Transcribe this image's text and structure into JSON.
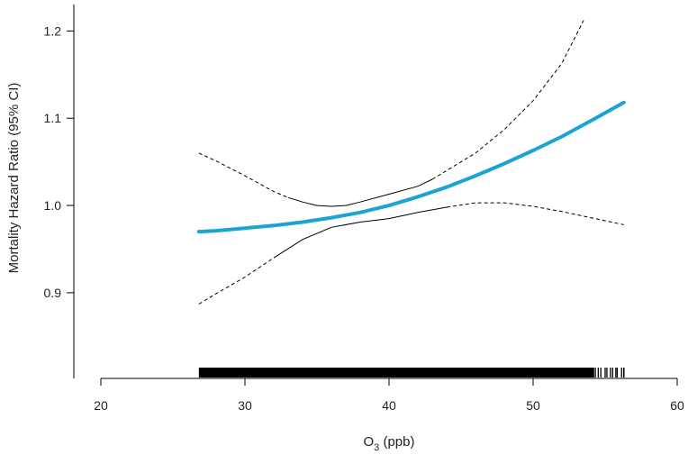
{
  "chart_data": {
    "type": "line",
    "xlabel_main": "O",
    "xlabel_sub": "3",
    "xlabel_rest": " (ppb)",
    "ylabel": "Mortality Hazard Ratio (95% CI)",
    "xlim": [
      20,
      60
    ],
    "ylim": [
      0.84,
      1.22
    ],
    "x_ticks": [
      20,
      30,
      40,
      50,
      60
    ],
    "x_tick_labels": [
      "20",
      "30",
      "40",
      "50",
      "60"
    ],
    "y_ticks": [
      0.9,
      1.0,
      1.1,
      1.2
    ],
    "y_tick_labels": [
      "0.9",
      "1.0",
      "1.1",
      "1.2"
    ],
    "rug_range": [
      26.8,
      56.3
    ],
    "series": [
      {
        "role": "estimate",
        "color": "#1aa3d4",
        "x": [
          26.8,
          28,
          30,
          32,
          34,
          36,
          38,
          40,
          42,
          44,
          46,
          48,
          50,
          52,
          54,
          56.3
        ],
        "y": [
          0.97,
          0.971,
          0.974,
          0.977,
          0.981,
          0.986,
          0.992,
          1.0,
          1.01,
          1.021,
          1.034,
          1.048,
          1.063,
          1.079,
          1.097,
          1.118
        ]
      },
      {
        "role": "upper_ci",
        "color": "#000000",
        "x": [
          26.8,
          28,
          30,
          32,
          33,
          34,
          35,
          36,
          37,
          38,
          40,
          42,
          43,
          44,
          46,
          48,
          50,
          52,
          53.5
        ],
        "y": [
          1.06,
          1.051,
          1.034,
          1.016,
          1.009,
          1.004,
          1.0,
          0.999,
          1.0,
          1.004,
          1.013,
          1.022,
          1.03,
          1.04,
          1.06,
          1.087,
          1.12,
          1.163,
          1.212
        ]
      },
      {
        "role": "lower_ci",
        "color": "#000000",
        "x": [
          26.8,
          28,
          30,
          32,
          34,
          36,
          38,
          40,
          42,
          44,
          46,
          48,
          50,
          52,
          54,
          56.3
        ],
        "y": [
          0.887,
          0.899,
          0.918,
          0.94,
          0.961,
          0.975,
          0.981,
          0.985,
          0.992,
          0.998,
          1.003,
          1.003,
          0.999,
          0.993,
          0.986,
          0.978
        ]
      }
    ]
  }
}
